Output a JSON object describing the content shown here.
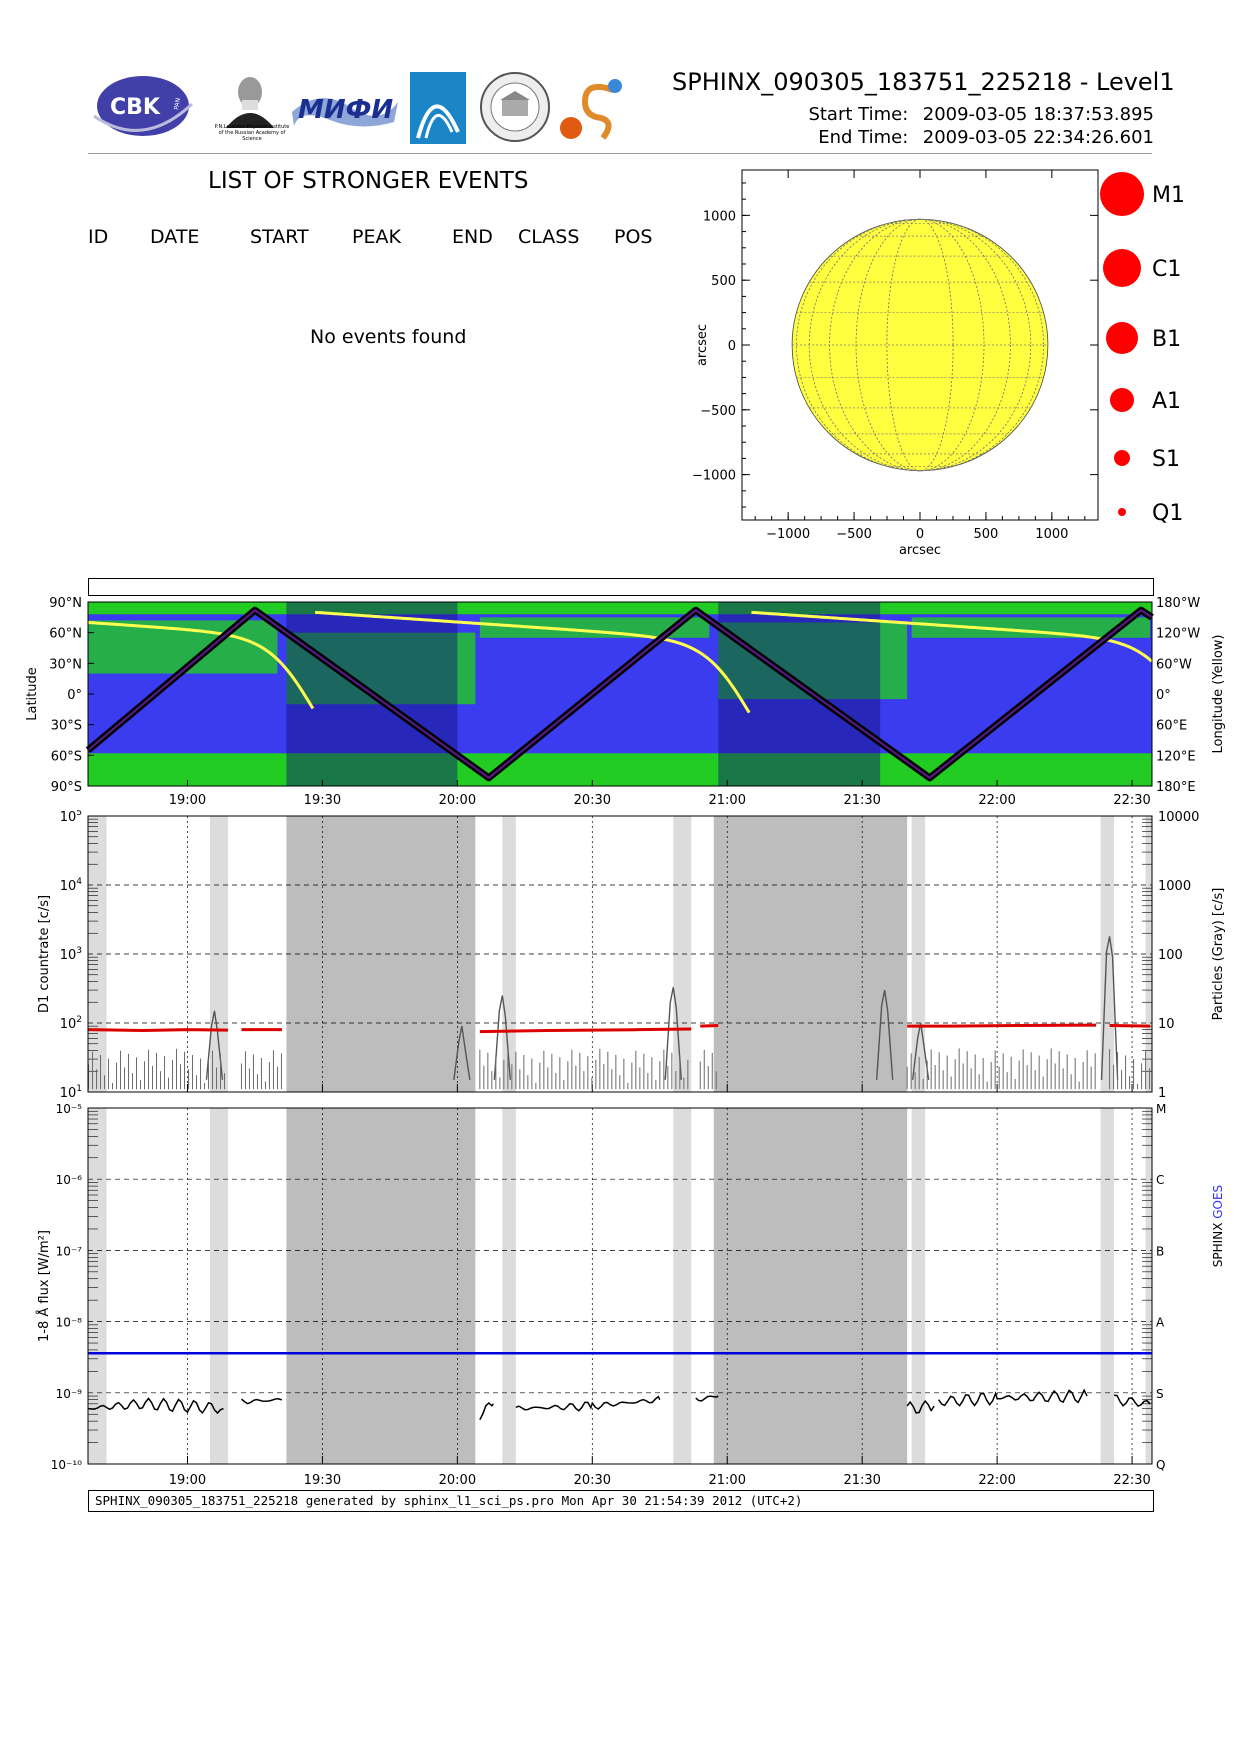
{
  "header": {
    "title": "SPHINX_090305_183751_225218 - Level1",
    "start_label": "Start Time:",
    "start_value": "2009-03-05   18:37:53.895",
    "end_label": "End Time:",
    "end_value": "2009-03-05   22:34:26.601",
    "logos": {
      "cbk_text": "CBK",
      "cbk_sub": "PAN",
      "lebedev_caption": "P.N.Lebedev Physical Institute of the Russian Academy of Science",
      "miph_text": "МИФИ"
    }
  },
  "events": {
    "title": "LIST OF STRONGER EVENTS",
    "columns": [
      "ID",
      "DATE",
      "START",
      "PEAK",
      "END",
      "CLASS",
      "POS"
    ],
    "empty_text": "No events found"
  },
  "footer_text": "SPHINX_090305_183751_225218 generated by sphinx_l1_sci_ps.pro Mon Apr 30 21:54:39 2012 (UTC+2)",
  "colors": {
    "sun": "#ffff40",
    "legend_dot": "#ff0000",
    "ocean_blue": "#3b3bf0",
    "land_green": "#22cc22",
    "dark_band": "#0f0f78",
    "track": "#000000",
    "longitude_line": "#ffff50",
    "countrate": "#dd0000",
    "particles": "#555555",
    "sphinx_flux": "#000000",
    "goes_flux": "#0000dd",
    "shade_light": "#dcdcdc",
    "shade_dark": "#bdbdbd"
  },
  "chart_data": [
    {
      "type": "scatter",
      "name": "Flare position map",
      "xlabel": "arcsec",
      "ylabel": "arcsec",
      "xlim": [
        -1350,
        1350
      ],
      "ylim": [
        -1350,
        1350
      ],
      "xticks": [
        -1000,
        -500,
        0,
        500,
        1000
      ],
      "yticks": [
        -1000,
        -500,
        0,
        500,
        1000
      ],
      "solar_radius_arcsec": 970,
      "points": [],
      "legend": [
        "M1",
        "C1",
        "B1",
        "A1",
        "S1",
        "Q1"
      ]
    },
    {
      "type": "line",
      "name": "Orbit track",
      "ylabel": "Latitude",
      "ylabel_right": "Longitude (Yellow)",
      "yticks": [
        "90°N",
        "60°N",
        "30°N",
        "0°",
        "30°S",
        "60°S",
        "90°S"
      ],
      "yticks_right": [
        "180°W",
        "120°W",
        "60°W",
        "0°",
        "60°E",
        "120°E",
        "180°E"
      ],
      "xticks": [
        "19:00",
        "19:30",
        "20:00",
        "20:30",
        "21:00",
        "21:30",
        "22:00",
        "22:30"
      ],
      "xlim": [
        "18:37:53",
        "22:34:26"
      ],
      "latitude_extremes": [
        {
          "t": "18:37:53",
          "lat": -55
        },
        {
          "t": "19:15",
          "lat": 82
        },
        {
          "t": "20:07",
          "lat": -82
        },
        {
          "t": "20:53",
          "lat": 82
        },
        {
          "t": "21:45",
          "lat": -82
        },
        {
          "t": "22:32",
          "lat": 82
        },
        {
          "t": "22:34:26",
          "lat": 75
        }
      ],
      "eclipse_intervals": [
        [
          "19:22",
          "20:00"
        ],
        [
          "20:58",
          "21:34"
        ]
      ]
    },
    {
      "type": "line",
      "name": "D1 countrate",
      "ylabel": "D1 countrate [c/s]",
      "ylabel_right": "Particles (Gray) [c/s]",
      "yscale": "log",
      "ylim": [
        10,
        100000
      ],
      "ylim_right": [
        1,
        10000
      ],
      "yticks_right": [
        "1",
        "10",
        "100",
        "1000",
        "10000"
      ],
      "xticks": [
        "19:00",
        "19:30",
        "20:00",
        "20:30",
        "21:00",
        "21:30",
        "22:00",
        "22:30"
      ],
      "series": [
        {
          "name": "D1",
          "segments": [
            {
              "x": [
                "18:38",
                "18:50",
                "19:00",
                "19:09"
              ],
              "y": [
                80,
                78,
                80,
                79
              ]
            },
            {
              "x": [
                "19:12",
                "19:21"
              ],
              "y": [
                80,
                80
              ]
            },
            {
              "x": [
                "20:05",
                "20:20",
                "20:40",
                "20:52"
              ],
              "y": [
                75,
                78,
                80,
                82
              ]
            },
            {
              "x": [
                "20:54",
                "20:58"
              ],
              "y": [
                90,
                92
              ]
            },
            {
              "x": [
                "21:40",
                "21:50",
                "22:05",
                "22:22"
              ],
              "y": [
                90,
                90,
                92,
                93
              ]
            },
            {
              "x": [
                "22:25",
                "22:34"
              ],
              "y": [
                92,
                90
              ]
            }
          ]
        }
      ],
      "particle_spikes": [
        {
          "t": "19:06",
          "c": 15
        },
        {
          "t": "20:01",
          "c": 9
        },
        {
          "t": "20:10",
          "c": 25
        },
        {
          "t": "20:48",
          "c": 33
        },
        {
          "t": "21:35",
          "c": 30
        },
        {
          "t": "21:43",
          "c": 10
        },
        {
          "t": "22:25",
          "c": 180
        }
      ],
      "shaded_light": [
        [
          "18:37:53",
          "18:42"
        ],
        [
          "19:05",
          "19:09"
        ],
        [
          "20:10",
          "20:13"
        ],
        [
          "20:48",
          "20:52"
        ],
        [
          "21:41",
          "21:44"
        ],
        [
          "22:23",
          "22:26"
        ],
        [
          "22:33",
          "22:34:26"
        ]
      ],
      "shaded_dark": [
        [
          "19:22",
          "20:04"
        ],
        [
          "20:57",
          "21:40"
        ]
      ]
    },
    {
      "type": "line",
      "name": "1-8 A flux",
      "ylabel": "1-8 Å flux [W/m²]",
      "ylabel_right_a": "SPHINX",
      "ylabel_right_b": "GOES",
      "yscale": "log",
      "ylim": [
        1e-10,
        1e-05
      ],
      "ytick_labels": [
        "10⁻¹⁰",
        "10⁻⁹",
        "10⁻⁸",
        "10⁻⁷",
        "10⁻⁶",
        "10⁻⁵"
      ],
      "yticks_right": [
        "Q",
        "S",
        "A",
        "B",
        "C",
        "M"
      ],
      "xticks": [
        "19:00",
        "19:30",
        "20:00",
        "20:30",
        "21:00",
        "21:30",
        "22:00",
        "22:30"
      ],
      "series": [
        {
          "name": "SPHINX",
          "segments": [
            {
              "x": [
                "18:38",
                "18:50",
                "19:00",
                "19:08"
              ],
              "y": [
                6e-10,
                7e-10,
                6.5e-10,
                6e-10
              ]
            },
            {
              "x": [
                "19:12",
                "19:21"
              ],
              "y": [
                7.5e-10,
                8e-10
              ]
            },
            {
              "x": [
                "20:05",
                "20:08"
              ],
              "y": [
                5e-10,
                7e-10
              ]
            },
            {
              "x": [
                "20:13",
                "20:30",
                "20:45"
              ],
              "y": [
                6e-10,
                6.5e-10,
                8e-10
              ]
            },
            {
              "x": [
                "20:53",
                "20:58"
              ],
              "y": [
                8e-10,
                9e-10
              ]
            },
            {
              "x": [
                "21:40",
                "21:46"
              ],
              "y": [
                6e-10,
                6.5e-10
              ]
            },
            {
              "x": [
                "21:47",
                "22:00",
                "22:20"
              ],
              "y": [
                7.5e-10,
                8.5e-10,
                9e-10
              ]
            },
            {
              "x": [
                "22:26",
                "22:34"
              ],
              "y": [
                8e-10,
                7e-10
              ]
            }
          ]
        },
        {
          "name": "GOES",
          "x": [
            "18:37:53",
            "22:34:26"
          ],
          "y": [
            3.6e-09,
            3.6e-09
          ]
        }
      ],
      "shaded_light": [
        [
          "18:37:53",
          "18:42"
        ],
        [
          "19:05",
          "19:09"
        ],
        [
          "20:10",
          "20:13"
        ],
        [
          "20:48",
          "20:52"
        ],
        [
          "21:41",
          "21:44"
        ],
        [
          "22:23",
          "22:26"
        ],
        [
          "22:33",
          "22:34:26"
        ]
      ],
      "shaded_dark": [
        [
          "19:22",
          "20:04"
        ],
        [
          "20:57",
          "21:40"
        ]
      ]
    }
  ]
}
